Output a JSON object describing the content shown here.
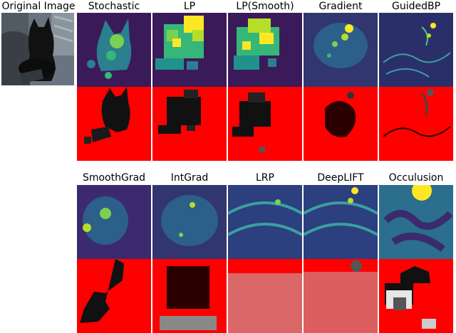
{
  "original_title": "Original Image",
  "methods_row1": [
    "Stochastic",
    "LP",
    "LP(Smooth)",
    "Gradient",
    "GuidedBP"
  ],
  "methods_row2": [
    "SmoothGrad",
    "IntGrad",
    "LRP",
    "DeepLIFT",
    "Occulusion"
  ],
  "colors": {
    "mask_red": "#ff0000",
    "viridis_low": "#440154",
    "viridis_mid": "#21918c",
    "viridis_high": "#fde725"
  }
}
